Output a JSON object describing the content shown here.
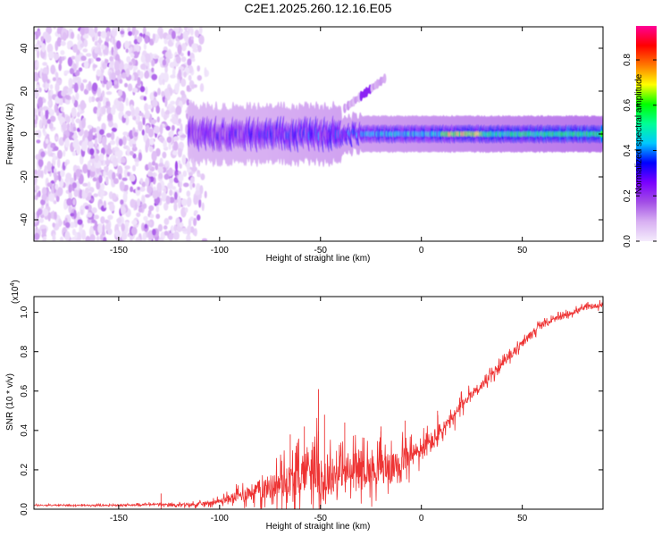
{
  "chart_data": [
    {
      "type": "heatmap",
      "title": "C2E1.2025.260.12.16.E05",
      "xlabel": "Height of straight line (km)",
      "ylabel": "Frequency (Hz)",
      "xlim": [
        -192,
        90
      ],
      "ylim": [
        -50,
        50
      ],
      "xticks": [
        -150,
        -100,
        -50,
        0,
        50
      ],
      "xtick_labels": [
        "-150",
        "-100",
        "-50",
        "0",
        "50"
      ],
      "yticks": [
        -40,
        -20,
        0,
        20,
        40
      ],
      "ytick_labels": [
        "-40",
        "-20",
        "0",
        "20",
        "40"
      ],
      "colorbar": {
        "label": "Normalized spectral amplitude",
        "range": [
          0.0,
          0.95
        ],
        "ticks": [
          0.0,
          0.2,
          0.4,
          0.6,
          0.8
        ],
        "tick_labels": [
          "0.0",
          "0.2",
          "0.4",
          "0.6",
          "0.8"
        ],
        "colors": [
          "#f4ecfc",
          "#d8b0f2",
          "#a24de6",
          "#7a00ff",
          "#0000ff",
          "#00c8ff",
          "#00ff96",
          "#00ff00",
          "#ffff00",
          "#ff7800",
          "#ff0000",
          "#ff0096"
        ]
      },
      "features": [
        {
          "name": "noise-region",
          "x_range": [
            -192,
            -105
          ],
          "y_range": [
            -50,
            50
          ],
          "amplitude": 0.15
        },
        {
          "name": "main-band",
          "x_range": [
            -115,
            90
          ],
          "center_frequency": 0,
          "half_width": 4,
          "amplitude_start": 0.3,
          "amplitude_end": 0.55
        },
        {
          "name": "upper-branch",
          "x_range": [
            -38,
            -18
          ],
          "frequency_range": [
            12,
            26
          ],
          "amplitude": 0.1
        }
      ]
    },
    {
      "type": "line",
      "xlabel": "Height of straight line (km)",
      "ylabel": "SNR (10 * v/v)",
      "scale_label": "(x10",
      "scale_exponent": "4",
      "scale_suffix": ")",
      "xlim": [
        -192,
        90
      ],
      "ylim": [
        0,
        1.08
      ],
      "xticks": [
        -150,
        -100,
        -50,
        0,
        50
      ],
      "xtick_labels": [
        "-150",
        "-100",
        "-50",
        "0",
        "50"
      ],
      "yticks": [
        0.0,
        0.2,
        0.4,
        0.6,
        0.8,
        1.0
      ],
      "ytick_labels": [
        "0.0",
        "0.2",
        "0.4",
        "0.6",
        "0.8",
        "1.0"
      ],
      "line_color": "#ee3333",
      "series": [
        {
          "name": "SNR",
          "x": [
            -192,
            -170,
            -150,
            -130,
            -125,
            -110,
            -100,
            -90,
            -80,
            -70,
            -60,
            -55,
            -52,
            -50,
            -45,
            -40,
            -35,
            -30,
            -25,
            -20,
            -15,
            -10,
            -5,
            0,
            5,
            10,
            15,
            20,
            25,
            30,
            35,
            40,
            45,
            50,
            55,
            60,
            70,
            80,
            90
          ],
          "y": [
            0.02,
            0.02,
            0.02,
            0.025,
            0.02,
            0.025,
            0.04,
            0.07,
            0.1,
            0.13,
            0.16,
            0.25,
            0.2,
            0.14,
            0.16,
            0.2,
            0.18,
            0.22,
            0.19,
            0.23,
            0.2,
            0.25,
            0.27,
            0.3,
            0.34,
            0.4,
            0.45,
            0.53,
            0.59,
            0.63,
            0.68,
            0.74,
            0.79,
            0.84,
            0.9,
            0.94,
            0.98,
            1.02,
            1.04
          ]
        }
      ],
      "amplitude": [
        0.005,
        0.005,
        0.005,
        0.01,
        0.01,
        0.015,
        0.02,
        0.05,
        0.08,
        0.12,
        0.15,
        0.2,
        0.2,
        0.17,
        0.15,
        0.14,
        0.14,
        0.14,
        0.13,
        0.13,
        0.12,
        0.11,
        0.1,
        0.09,
        0.09,
        0.08,
        0.06,
        0.05,
        0.04,
        0.04,
        0.035,
        0.03,
        0.03,
        0.03,
        0.03,
        0.025,
        0.02,
        0.02,
        0.02
      ],
      "spikes": [
        {
          "x": -129,
          "y": 0.08
        },
        {
          "x": -65,
          "y": 0.38
        },
        {
          "x": -58,
          "y": 0.42
        },
        {
          "x": -51,
          "y": 0.61
        },
        {
          "x": -48,
          "y": 0.48
        },
        {
          "x": -38,
          "y": 0.44
        },
        {
          "x": -20,
          "y": 0.42
        },
        {
          "x": -8,
          "y": 0.45
        },
        {
          "x": 8,
          "y": 0.5
        }
      ]
    }
  ]
}
